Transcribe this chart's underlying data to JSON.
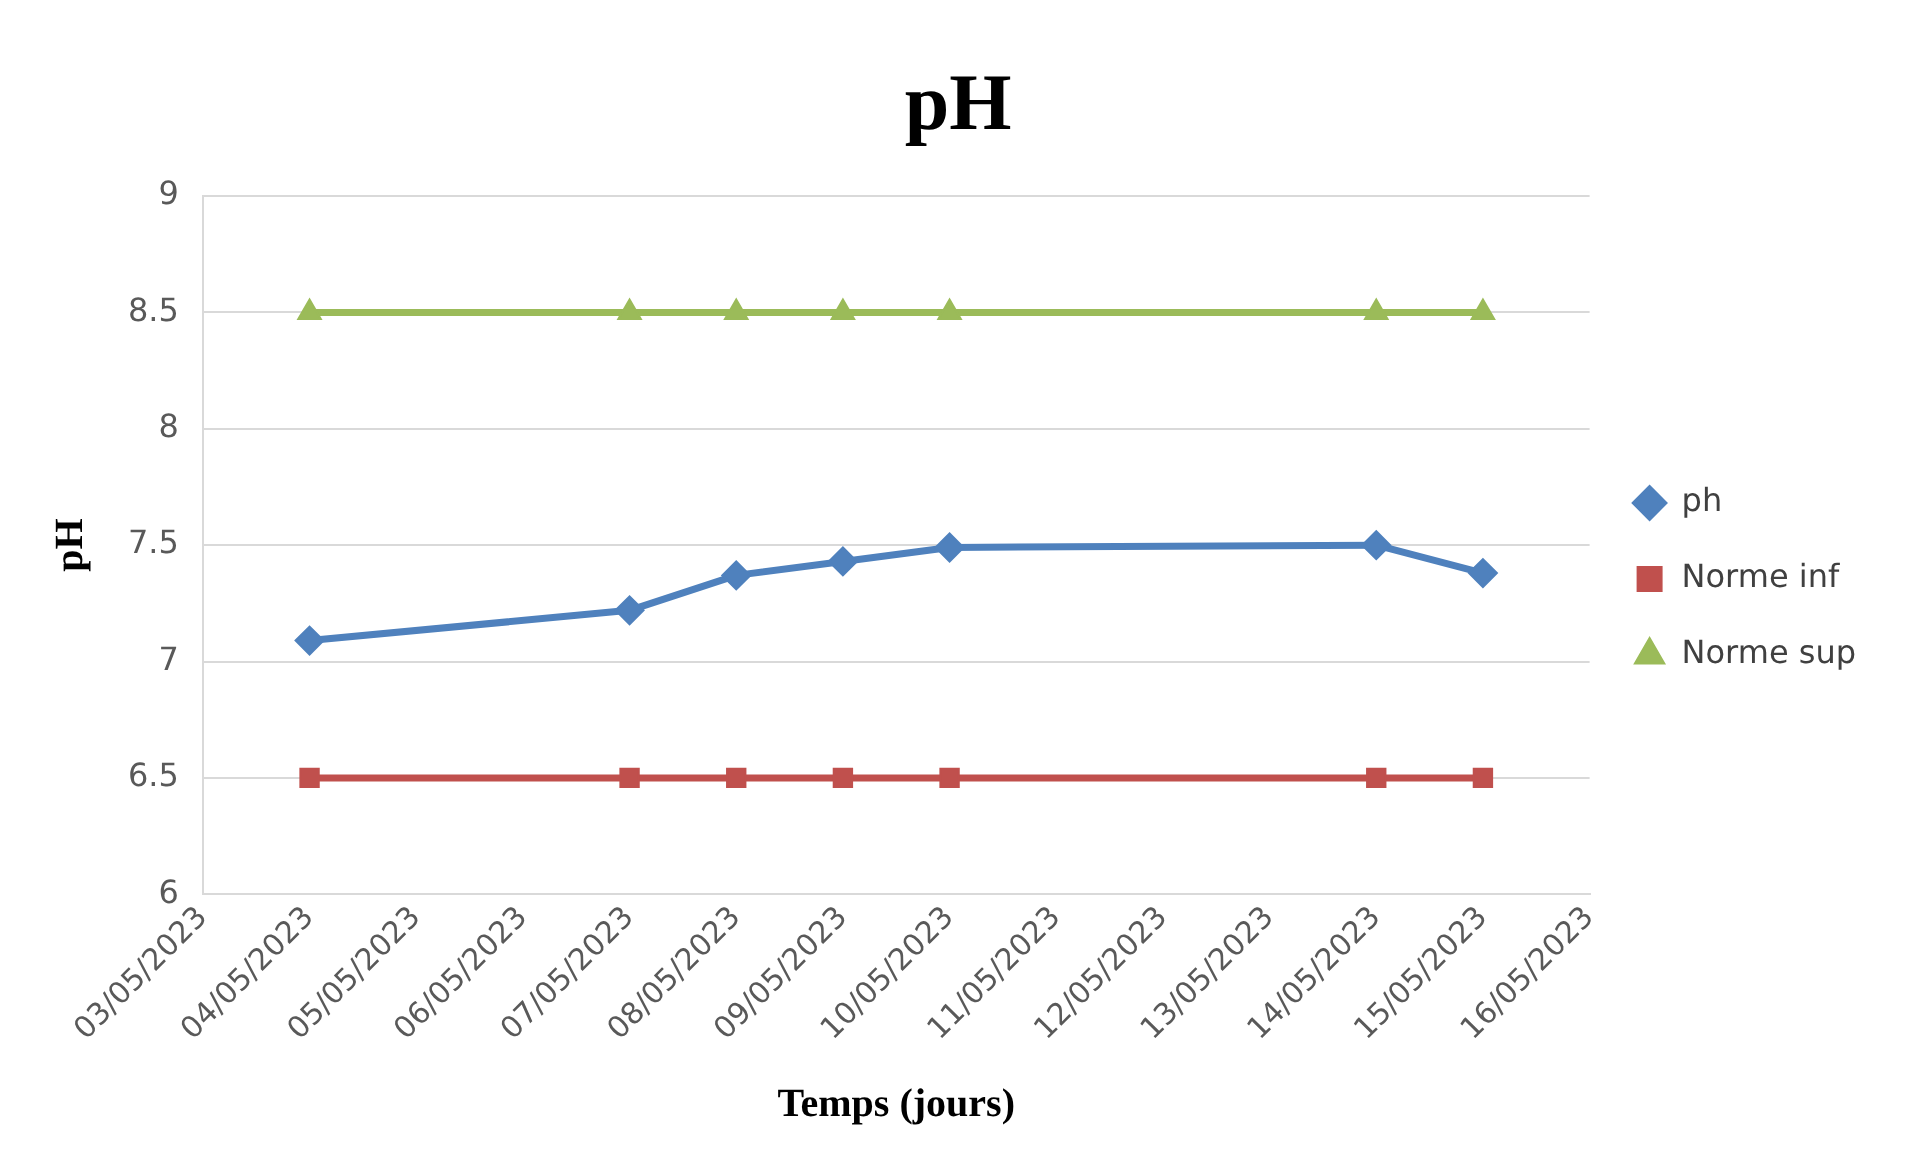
{
  "chart_data": {
    "type": "line",
    "title": "pH",
    "xlabel": "Temps (jours)",
    "ylabel": "pH",
    "x": [
      "2023-05-04",
      "2023-05-07",
      "2023-05-08",
      "2023-05-09",
      "2023-05-10",
      "2023-05-14",
      "2023-05-15"
    ],
    "series": [
      {
        "name": "ph",
        "color": "#4f81bd",
        "marker": "diamond",
        "values": [
          7.09,
          7.22,
          7.37,
          7.43,
          7.49,
          7.5,
          7.38
        ]
      },
      {
        "name": "Norme inf",
        "color": "#c0504d",
        "marker": "square",
        "values": [
          6.5,
          6.5,
          6.5,
          6.5,
          6.5,
          6.5,
          6.5
        ]
      },
      {
        "name": "Norme sup",
        "color": "#9bbb59",
        "marker": "triangle",
        "values": [
          8.5,
          8.5,
          8.5,
          8.5,
          8.5,
          8.5,
          8.5
        ]
      }
    ],
    "xlim": [
      "2023-05-03",
      "2023-05-16"
    ],
    "xticks": [
      {
        "value": "2023-05-03",
        "label": "03/05/2023"
      },
      {
        "value": "2023-05-04",
        "label": "04/05/2023"
      },
      {
        "value": "2023-05-05",
        "label": "05/05/2023"
      },
      {
        "value": "2023-05-06",
        "label": "06/05/2023"
      },
      {
        "value": "2023-05-07",
        "label": "07/05/2023"
      },
      {
        "value": "2023-05-08",
        "label": "08/05/2023"
      },
      {
        "value": "2023-05-09",
        "label": "09/05/2023"
      },
      {
        "value": "2023-05-10",
        "label": "10/05/2023"
      },
      {
        "value": "2023-05-11",
        "label": "11/05/2023"
      },
      {
        "value": "2023-05-12",
        "label": "12/05/2023"
      },
      {
        "value": "2023-05-13",
        "label": "13/05/2023"
      },
      {
        "value": "2023-05-14",
        "label": "14/05/2023"
      },
      {
        "value": "2023-05-15",
        "label": "15/05/2023"
      },
      {
        "value": "2023-05-16",
        "label": "16/05/2023"
      }
    ],
    "ylim": [
      6,
      9
    ],
    "yticks": [
      6,
      6.5,
      7,
      7.5,
      8,
      8.5,
      9
    ],
    "grid": "y",
    "legend": "right",
    "line_style": "solid"
  }
}
